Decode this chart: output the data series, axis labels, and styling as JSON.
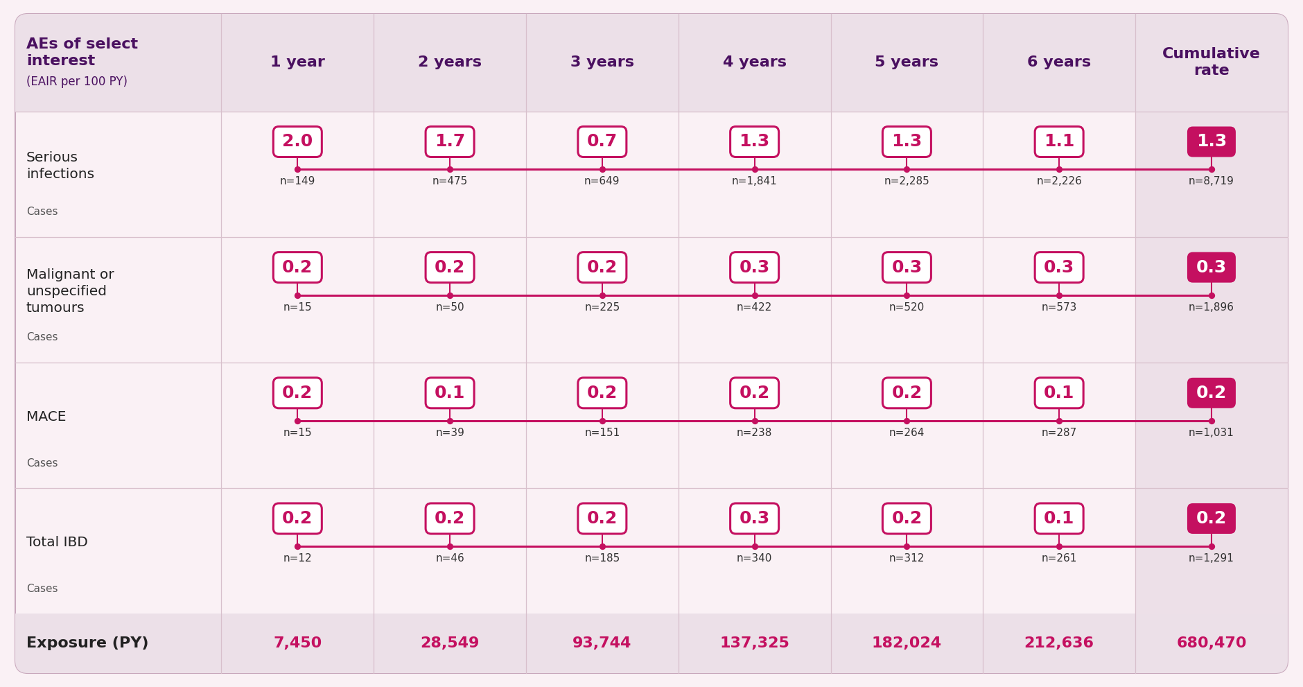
{
  "title_col": "AEs of select interest\n(EAIR per 100 PY)",
  "col_headers": [
    "1 year",
    "2 years",
    "3 years",
    "4 years",
    "5 years",
    "6 years",
    "Cumulative\nrate"
  ],
  "rows": [
    {
      "label_main": "Serious\ninfections",
      "label_sub": "Cases",
      "values": [
        "2.0",
        "1.7",
        "0.7",
        "1.3",
        "1.3",
        "1.1",
        "1.3"
      ],
      "cases": [
        "n=149",
        "n=475",
        "n=649",
        "n=1,841",
        "n=2,285",
        "n=2,226",
        "n=8,719"
      ]
    },
    {
      "label_main": "Malignant or\nunspecified\ntumours",
      "label_sub": "Cases",
      "values": [
        "0.2",
        "0.2",
        "0.2",
        "0.3",
        "0.3",
        "0.3",
        "0.3"
      ],
      "cases": [
        "n=15",
        "n=50",
        "n=225",
        "n=422",
        "n=520",
        "n=573",
        "n=1,896"
      ]
    },
    {
      "label_main": "MACE",
      "label_sub": "Cases",
      "values": [
        "0.2",
        "0.1",
        "0.2",
        "0.2",
        "0.2",
        "0.1",
        "0.2"
      ],
      "cases": [
        "n=15",
        "n=39",
        "n=151",
        "n=238",
        "n=264",
        "n=287",
        "n=1,031"
      ]
    },
    {
      "label_main": "Total IBD",
      "label_sub": "Cases",
      "values": [
        "0.2",
        "0.2",
        "0.2",
        "0.3",
        "0.2",
        "0.1",
        "0.2"
      ],
      "cases": [
        "n=12",
        "n=46",
        "n=185",
        "n=340",
        "n=312",
        "n=261",
        "n=1,291"
      ]
    }
  ],
  "exposure_row": {
    "label": "Exposure (PY)",
    "values": [
      "7,450",
      "28,549",
      "93,744",
      "137,325",
      "182,024",
      "212,636",
      "680,470"
    ]
  },
  "bg_color": "#faf1f5",
  "header_bg": "#ece0e8",
  "last_col_bg": "#ede0e8",
  "line_color": "#c41060",
  "box_border_color": "#c41060",
  "box_fill_color": "#ffffff",
  "last_box_fill_color": "#c41060",
  "last_box_text_color": "#ffffff",
  "exposure_color": "#c41060",
  "header_text_color": "#4a1060",
  "row_label_color": "#222222",
  "cases_color": "#555555",
  "grid_color": "#d8c0cc",
  "dot_color": "#c41060",
  "outer_border_color": "#c8a8bc"
}
